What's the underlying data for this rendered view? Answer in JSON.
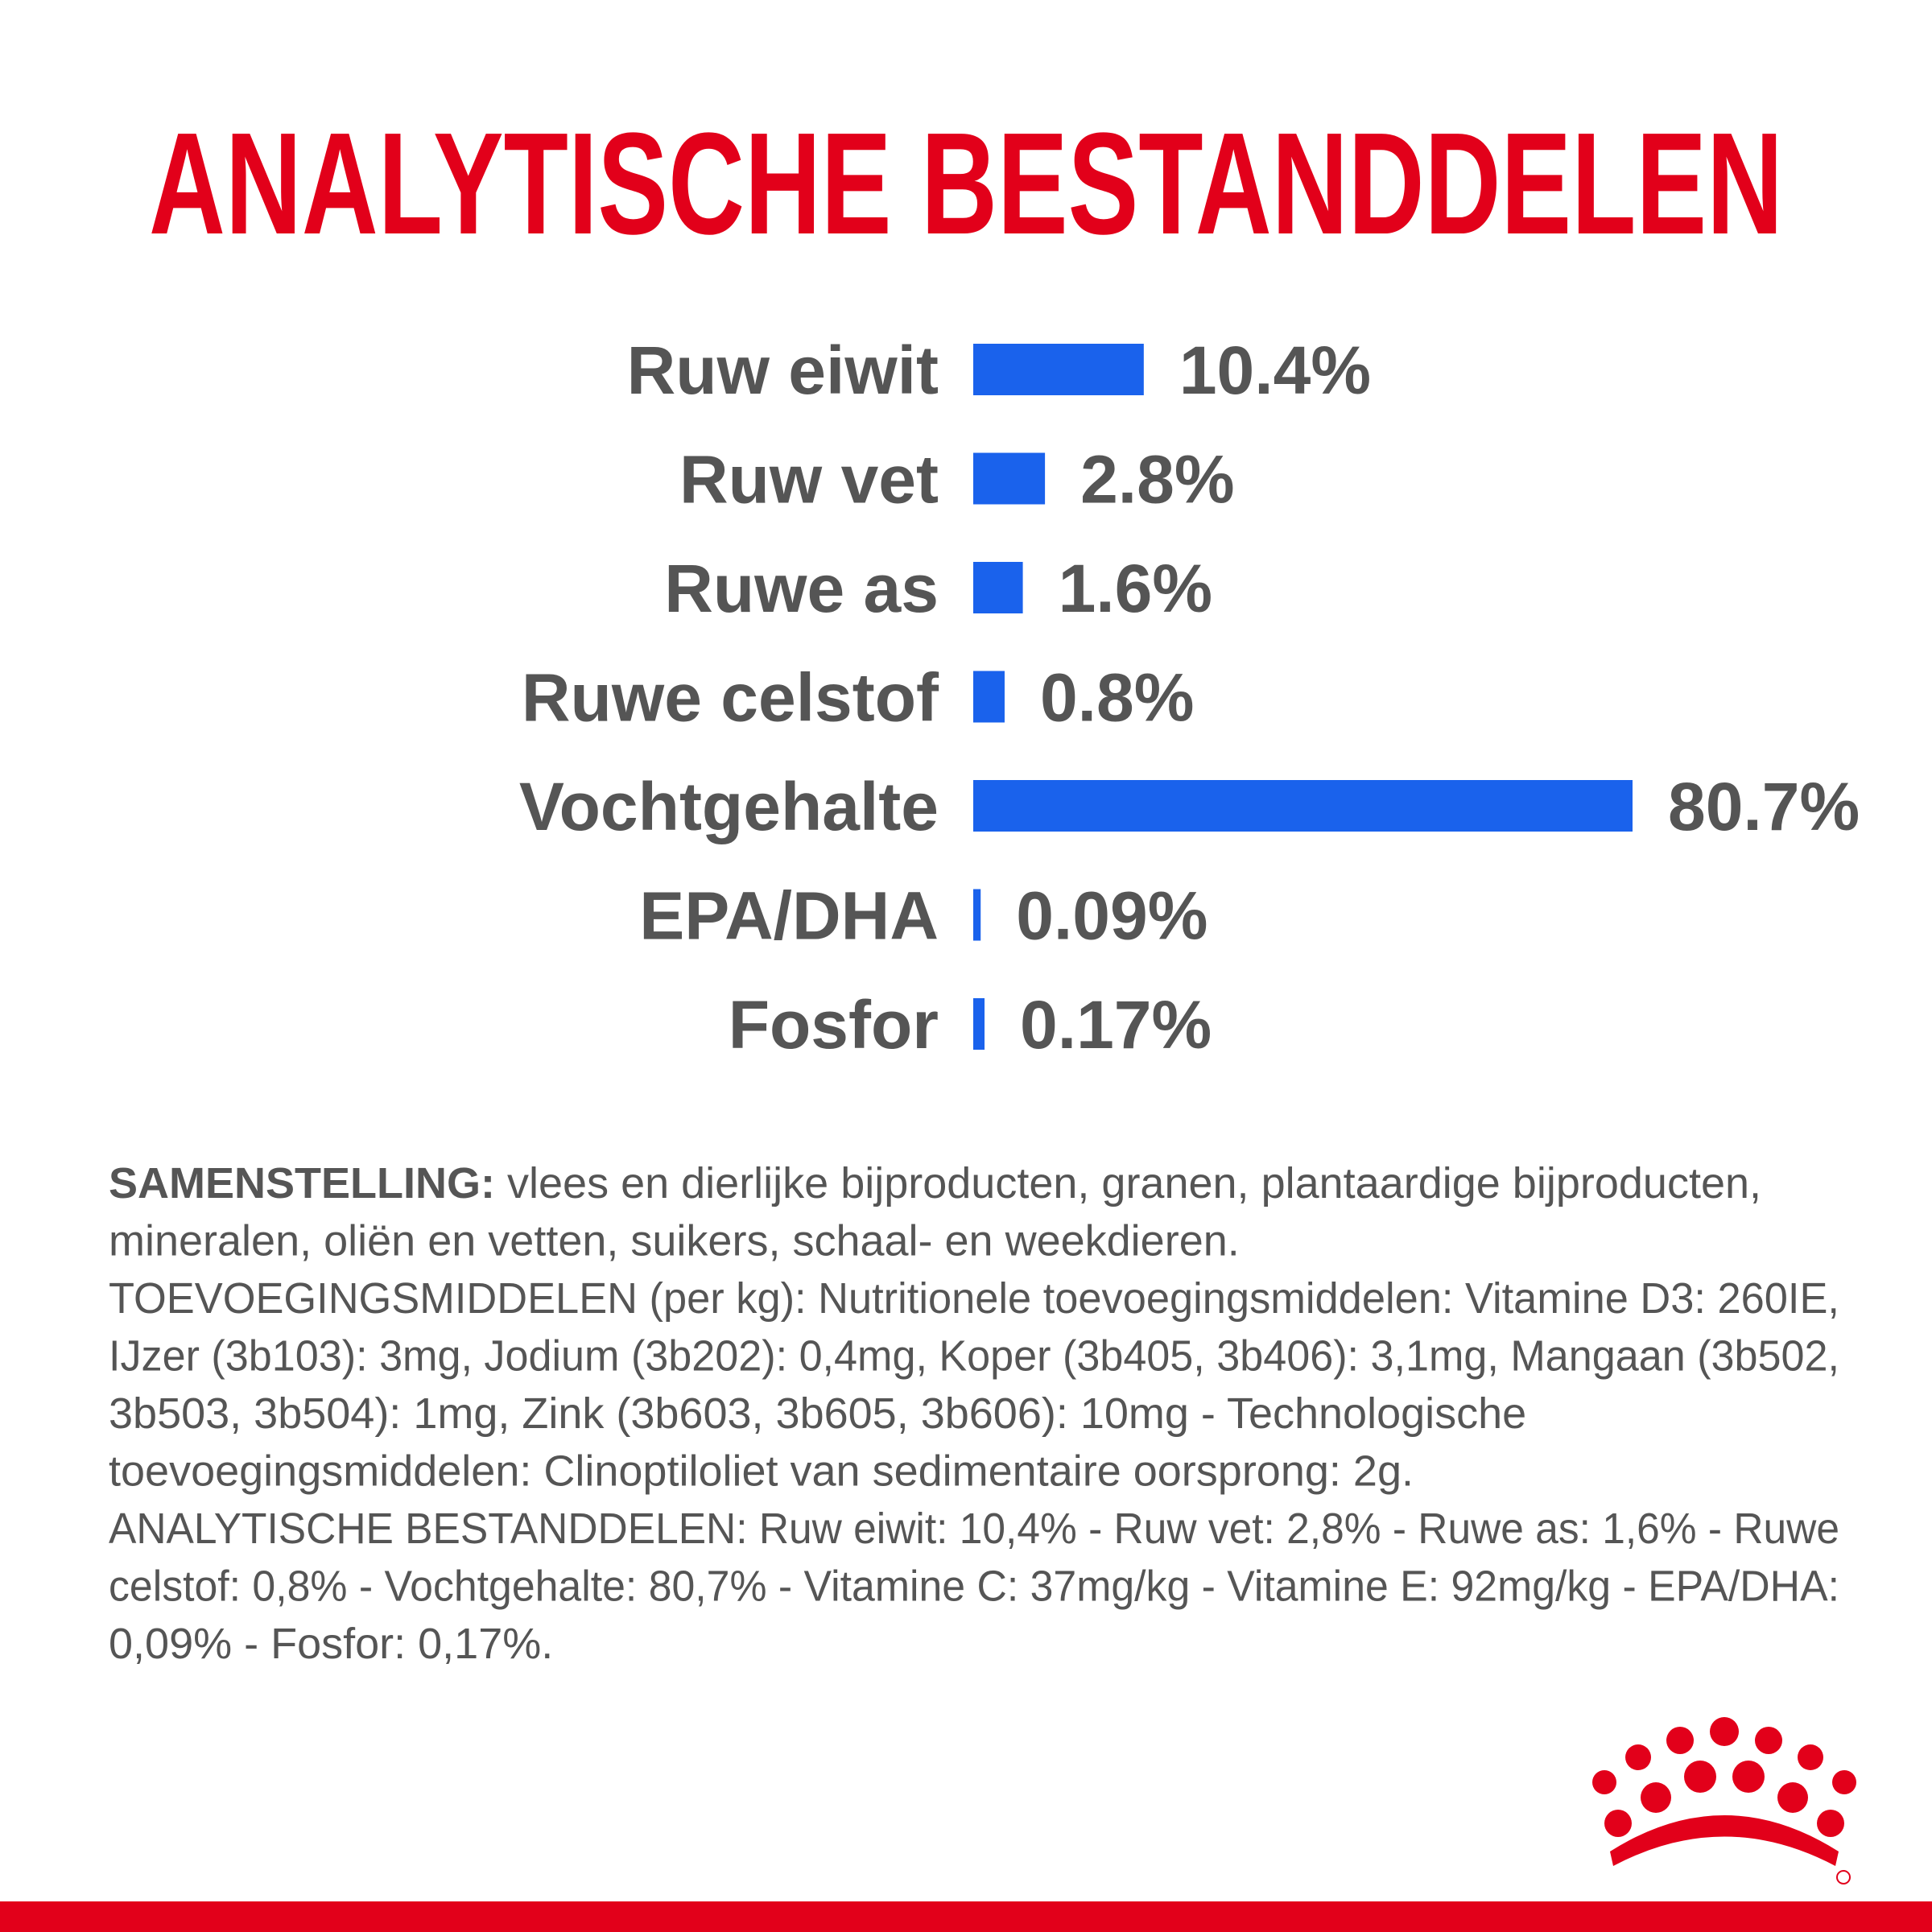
{
  "chart_data": {
    "type": "bar",
    "orientation": "horizontal",
    "title": "ANALYTISCHE BESTANDDELEN",
    "categories": [
      "Ruw eiwit",
      "Ruw vet",
      "Ruwe as",
      "Ruwe celstof",
      "Vochtgehalte",
      "EPA/DHA",
      "Fosfor"
    ],
    "values": [
      10.4,
      2.8,
      1.6,
      0.8,
      80.7,
      0.09,
      0.17
    ],
    "value_labels": [
      "10.4%",
      "2.8%",
      "1.6%",
      "0.8%",
      "80.7%",
      "0.09%",
      "0.17%"
    ],
    "color": "#1a62ec"
  },
  "composition": {
    "label": "SAMENSTELLING:",
    "lines": [
      " vlees en dierlijke bijproducten, granen, plantaardige bijproducten,",
      "mineralen, oliën en vetten, suikers, schaal- en weekdieren.",
      "TOEVOEGINGSMIDDELEN (per kg): Nutritionele toevoegingsmiddelen: Vitamine D3: 260IE,",
      "IJzer (3b103): 3mg, Jodium (3b202): 0,4mg, Koper (3b405, 3b406): 3,1mg, Mangaan (3b502,",
      "3b503, 3b504): 1mg, Zink (3b603, 3b605, 3b606): 10mg - Technologische",
      "toevoegingsmiddelen: Clinoptiloliet van sedimentaire oorsprong: 2g.",
      "ANALYTISCHE BESTANDDELEN: Ruw eiwit: 10,4% - Ruw vet: 2,8% - Ruwe as: 1,6% - Ruwe",
      "celstof: 0,8% - Vochtgehalte: 80,7% - Vitamine C: 37mg/kg - Vitamine E: 92mg/kg - EPA/DHA:",
      "0,09% - Fosfor: 0,17%."
    ]
  }
}
